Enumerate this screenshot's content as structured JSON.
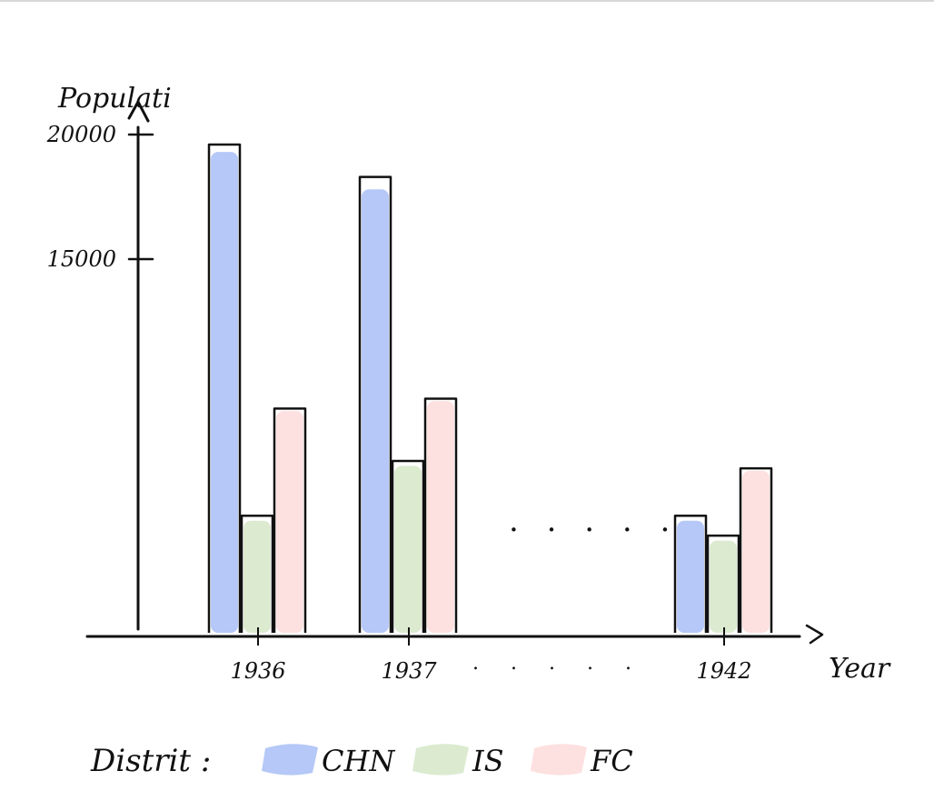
{
  "chart_data": {
    "type": "bar",
    "title": "",
    "ylabel": "Populati",
    "xlabel": "Year",
    "ylim": [
      0,
      20000
    ],
    "y_ticks": [
      {
        "value": 15000,
        "label": "15000"
      },
      {
        "value": 20000,
        "label": "20000"
      }
    ],
    "categories": [
      "1936",
      "1937",
      "1942"
    ],
    "gap_markers": [
      ". . . . .",
      ". . . . ."
    ],
    "legend_title": "Distrit :",
    "legend_placement": "bottom",
    "series": [
      {
        "name": "CHN",
        "color": "#b5c8f7",
        "values": [
          19300,
          17800,
          4500
        ]
      },
      {
        "name": "IS",
        "color": "#dcebd0",
        "values": [
          4500,
          6700,
          3700
        ]
      },
      {
        "name": "FC",
        "color": "#fde0e0",
        "values": [
          8900,
          9300,
          6500
        ]
      }
    ],
    "outline_values": [
      [
        19600,
        18300,
        4700
      ],
      [
        4700,
        6900,
        3900
      ],
      [
        9000,
        9400,
        6600
      ]
    ]
  }
}
